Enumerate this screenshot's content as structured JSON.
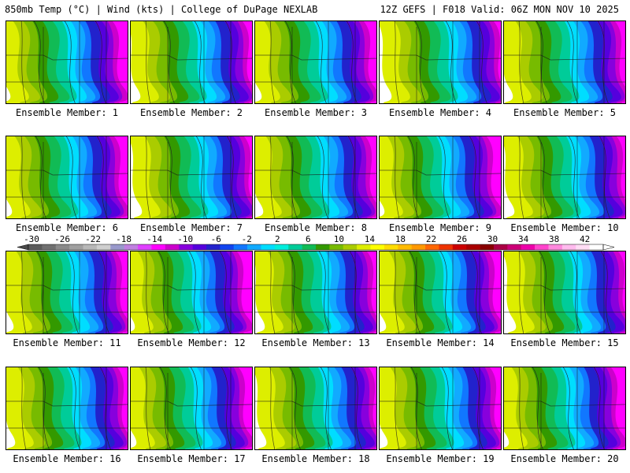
{
  "header": {
    "left": "850mb Temp (°C) | Wind (kts) | College of DuPage NEXLAB",
    "right": "12Z GEFS | F018 Valid: 06Z MON NOV 10 2025"
  },
  "panel_label_prefix": "Ensemble Member: ",
  "members": [
    {
      "label": "Ensemble Member: 1"
    },
    {
      "label": "Ensemble Member: 2"
    },
    {
      "label": "Ensemble Member: 3"
    },
    {
      "label": "Ensemble Member: 4"
    },
    {
      "label": "Ensemble Member: 5"
    },
    {
      "label": "Ensemble Member: 6"
    },
    {
      "label": "Ensemble Member: 7"
    },
    {
      "label": "Ensemble Member: 8"
    },
    {
      "label": "Ensemble Member: 9"
    },
    {
      "label": "Ensemble Member: 10"
    },
    {
      "label": "Ensemble Member: 11"
    },
    {
      "label": "Ensemble Member: 12"
    },
    {
      "label": "Ensemble Member: 13"
    },
    {
      "label": "Ensemble Member: 14"
    },
    {
      "label": "Ensemble Member: 15"
    },
    {
      "label": "Ensemble Member: 16"
    },
    {
      "label": "Ensemble Member: 17"
    },
    {
      "label": "Ensemble Member: 18"
    },
    {
      "label": "Ensemble Member: 19"
    },
    {
      "label": "Ensemble Member: 20"
    }
  ],
  "colorbar": {
    "tick_labels": [
      "-30",
      "-26",
      "-22",
      "-18",
      "-14",
      "-10",
      "-6",
      "-2",
      "2",
      "6",
      "10",
      "14",
      "18",
      "22",
      "26",
      "30",
      "34",
      "38",
      "42"
    ],
    "colors": [
      "#5a5a5a",
      "#707070",
      "#8a8a8a",
      "#a0a0a0",
      "#b8b8b8",
      "#cfcfcf",
      "#9999cc",
      "#c080e0",
      "#e040ff",
      "#ff00ff",
      "#cc00cc",
      "#8800dd",
      "#5500dd",
      "#2222cc",
      "#1144ee",
      "#1177ff",
      "#11aaff",
      "#00ddff",
      "#00eedd",
      "#00cc99",
      "#11bb55",
      "#339900",
      "#77bb00",
      "#aacc00",
      "#ddee00",
      "#ffff00",
      "#ffdd00",
      "#ffbb00",
      "#ff9900",
      "#ff6600",
      "#ee3300",
      "#cc0000",
      "#aa0000",
      "#880000",
      "#aa0044",
      "#cc0077",
      "#ee00aa",
      "#ff44cc",
      "#ff88dd",
      "#ffbbee",
      "#ffddf5",
      "#ffffff"
    ]
  }
}
